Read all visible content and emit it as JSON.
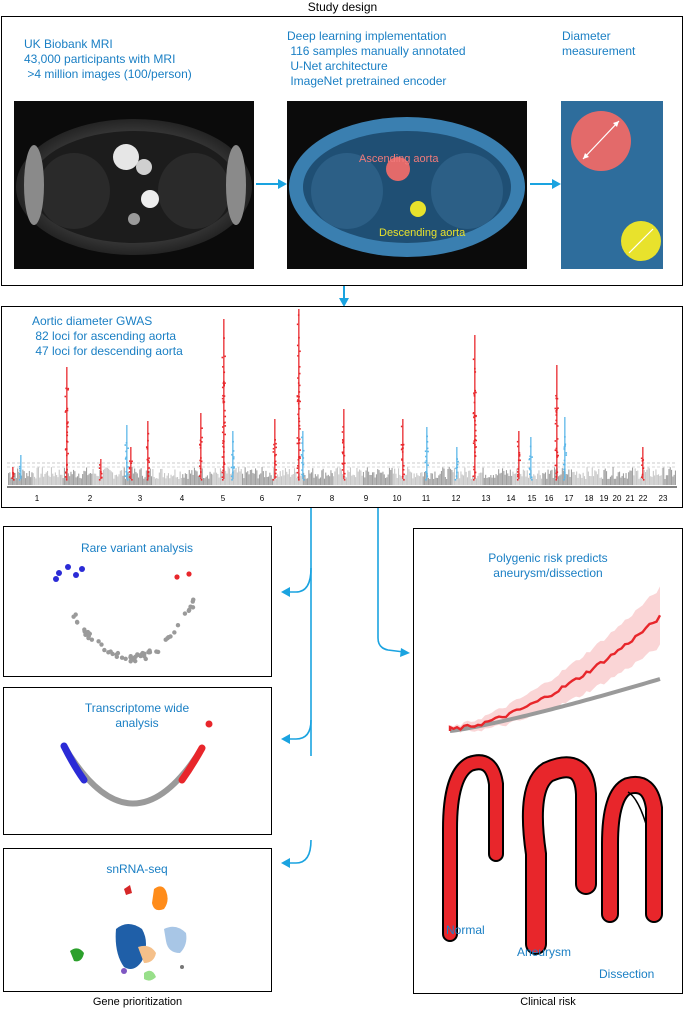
{
  "study_design": {
    "title": "Study design",
    "panel1": {
      "title": "UK Biobank MRI",
      "lines": [
        "43,000 participants with MRI",
        " >4 million images (100/person)"
      ]
    },
    "panel2": {
      "title": "Deep learning implementation",
      "lines": [
        " 116 samples manually annotated",
        " U-Net architecture",
        " ImageNet pretrained encoder"
      ],
      "label_ascending": "Ascending aorta",
      "label_descending": "Descending aorta"
    },
    "panel3": {
      "title": "Diameter",
      "line2": "measurement"
    }
  },
  "gwas": {
    "title": "Aortic diameter GWAS",
    "lines": [
      " 82 loci for ascending aorta",
      " 47 loci for descending aorta"
    ],
    "chromosomes": [
      "1",
      "2",
      "3",
      "4",
      "5",
      "6",
      "7",
      "8",
      "9",
      "10",
      "11",
      "12",
      "13",
      "14",
      "15",
      "16",
      "17",
      "18",
      "19",
      "20",
      "21",
      "22",
      "23"
    ]
  },
  "left_panels": {
    "rare_variant": "Rare variant analysis",
    "transcriptome_line1": "Transcriptome wide",
    "transcriptome_line2": "analysis",
    "snrna": "snRNA-seq",
    "caption": "Gene prioritization"
  },
  "right_panel": {
    "title_line1": "Polygenic risk predicts",
    "title_line2": "aneurysm/dissection",
    "label_normal": "Normal",
    "label_aneurysm": "Aneurysm",
    "label_dissection": "Dissection",
    "caption": "Clinical risk"
  },
  "colors": {
    "accent_blue": "#1a7fc4",
    "arrow_blue": "#1aa3e0",
    "red": "#e8262b",
    "gray": "#9a9a9a",
    "mask_blue": "#3a7fb0"
  }
}
